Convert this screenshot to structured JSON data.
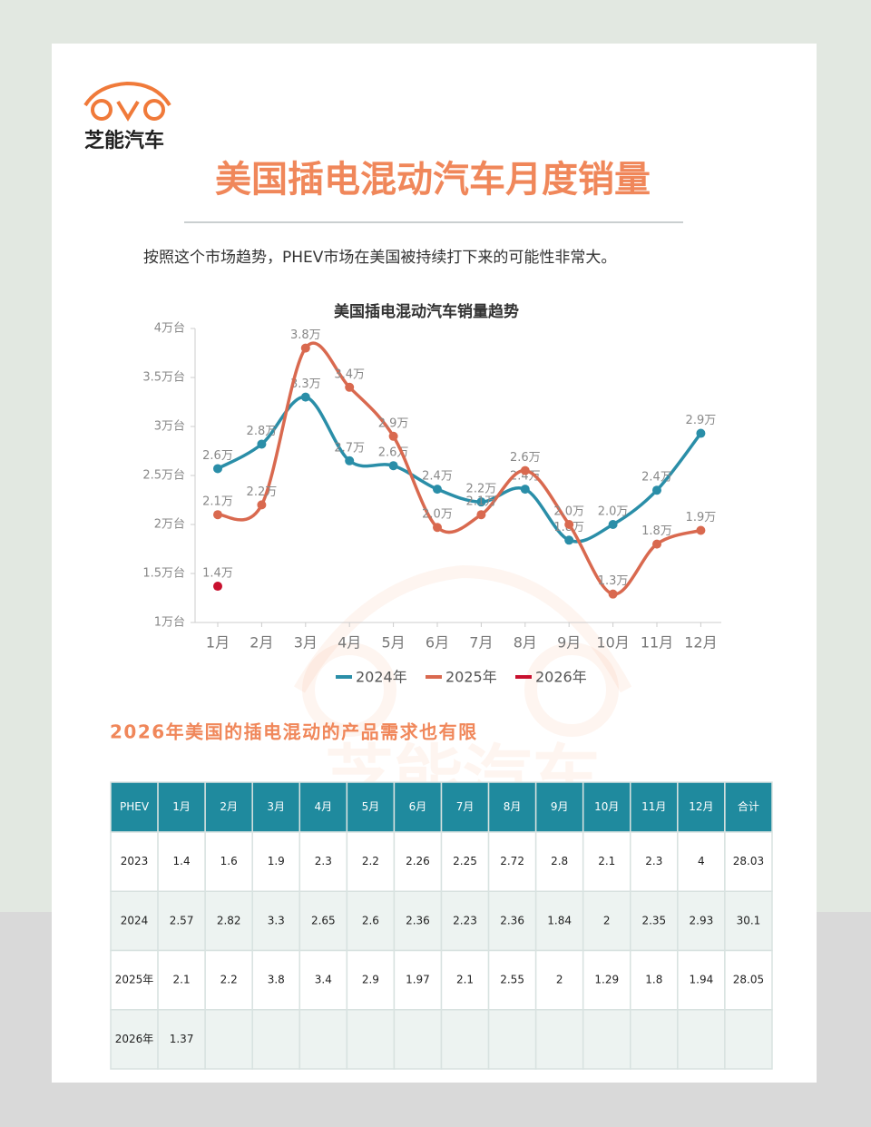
{
  "logo": {
    "text": "芝能汽车"
  },
  "header": {
    "title": "美国插电混动汽车月度销量",
    "subtitle": "按照这个市场趋势，PHEV市场在美国被持续打下来的可能性非常大。"
  },
  "chart_data": {
    "type": "line",
    "title": "美国插电混动汽车销量趋势",
    "categories": [
      "1月",
      "2月",
      "3月",
      "4月",
      "5月",
      "6月",
      "7月",
      "8月",
      "9月",
      "10月",
      "11月",
      "12月"
    ],
    "series": [
      {
        "name": "2024年",
        "color": "#2a8ea8",
        "values": [
          2.57,
          2.82,
          3.3,
          2.65,
          2.6,
          2.36,
          2.23,
          2.36,
          1.84,
          2,
          2.35,
          2.93
        ],
        "value_labels": [
          "2.6万",
          "2.8万",
          "3.3万",
          "2.7万",
          "2.6万",
          "2.4万",
          "2.2万",
          "2.4万",
          "1.8万",
          "2.0万",
          "2.4万",
          "2.9万"
        ]
      },
      {
        "name": "2025年",
        "color": "#d9694f",
        "values": [
          2.1,
          2.2,
          3.8,
          3.4,
          2.9,
          1.97,
          2.1,
          2.55,
          2,
          1.29,
          1.8,
          1.94
        ],
        "value_labels": [
          "2.1万",
          "2.2万",
          "3.8万",
          "3.4万",
          "2.9万",
          "2.0万",
          "2.1万",
          "2.6万",
          "2.0万",
          "1.3万",
          "1.8万",
          "1.9万"
        ]
      },
      {
        "name": "2026年",
        "color": "#c8102e",
        "values": [
          1.37,
          null,
          null,
          null,
          null,
          null,
          null,
          null,
          null,
          null,
          null,
          null
        ],
        "value_labels": [
          "1.4万",
          null,
          null,
          null,
          null,
          null,
          null,
          null,
          null,
          null,
          null,
          null
        ]
      }
    ],
    "ylim": [
      1,
      4
    ],
    "yticks": [
      {
        "value": 1,
        "label": "1万台"
      },
      {
        "value": 1.5,
        "label": "1.5万台"
      },
      {
        "value": 2,
        "label": "2万台"
      },
      {
        "value": 2.5,
        "label": "2.5万台"
      },
      {
        "value": 3,
        "label": "3万台"
      },
      {
        "value": 3.5,
        "label": "3.5万台"
      },
      {
        "value": 4,
        "label": "4万台"
      }
    ],
    "legend": "bottom"
  },
  "watermark": "芝能汽车",
  "section_title": "2026年美国的插电混动的产品需求也有限",
  "table": {
    "header": [
      "PHEV",
      "1月",
      "2月",
      "3月",
      "4月",
      "5月",
      "6月",
      "7月",
      "8月",
      "9月",
      "10月",
      "11月",
      "12月",
      "合计"
    ],
    "rows": [
      [
        "2023",
        1.4,
        1.6,
        1.9,
        2.3,
        2.2,
        2.26,
        2.25,
        2.72,
        2.8,
        2.1,
        2.3,
        4,
        28.03
      ],
      [
        "2024",
        2.57,
        2.82,
        3.3,
        2.65,
        2.6,
        2.36,
        2.23,
        2.36,
        1.84,
        2,
        2.35,
        2.93,
        30.1
      ],
      [
        "2025年",
        2.1,
        2.2,
        3.8,
        3.4,
        2.9,
        1.97,
        2.1,
        2.55,
        2,
        1.29,
        1.8,
        1.94,
        28.05
      ],
      [
        "2026年",
        1.37
      ]
    ]
  }
}
